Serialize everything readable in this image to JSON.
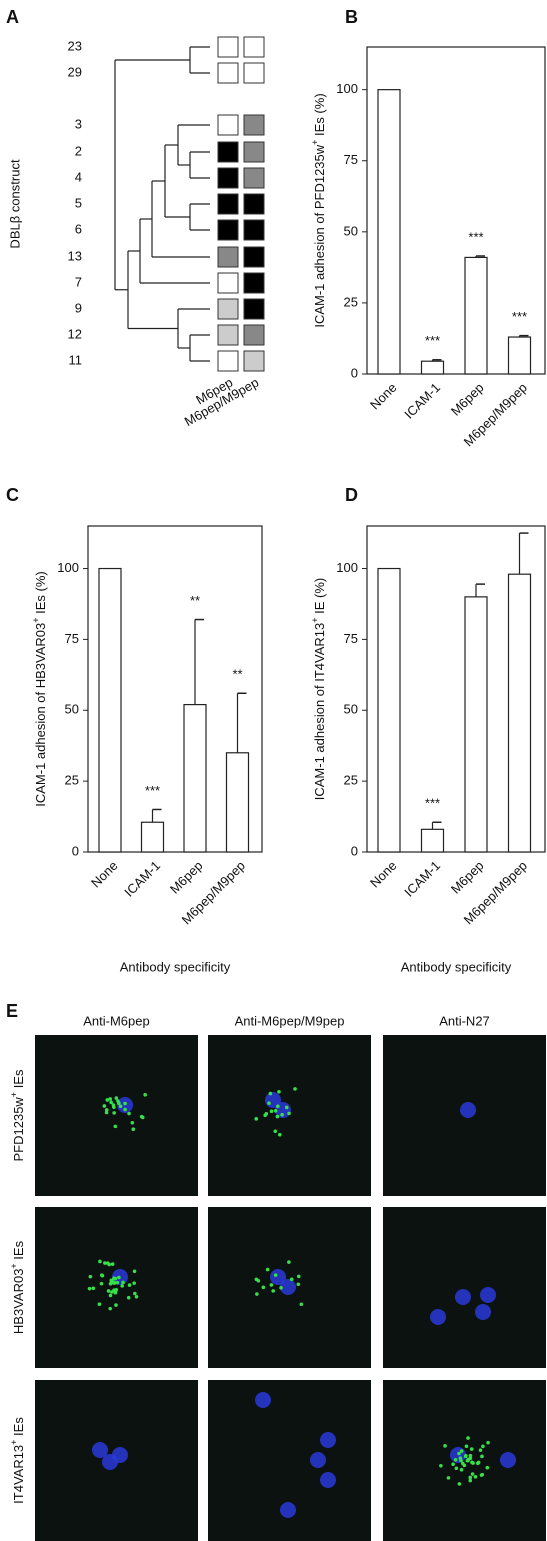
{
  "panel_labels": [
    "A",
    "B",
    "C",
    "D",
    "E"
  ],
  "dendrogram": {
    "ylabel": "DBLβ construct",
    "columns": [
      "M6pep",
      "M6pep/M9pep"
    ],
    "rows": [
      {
        "label": "23",
        "colors": [
          "#ffffff",
          "#ffffff"
        ]
      },
      {
        "label": "29",
        "colors": [
          "#ffffff",
          "#ffffff"
        ]
      },
      {
        "label": "3",
        "colors": [
          "#ffffff",
          "#888888"
        ]
      },
      {
        "label": "2",
        "colors": [
          "#000000",
          "#888888"
        ]
      },
      {
        "label": "4",
        "colors": [
          "#000000",
          "#888888"
        ]
      },
      {
        "label": "5",
        "colors": [
          "#000000",
          "#000000"
        ]
      },
      {
        "label": "6",
        "colors": [
          "#000000",
          "#000000"
        ]
      },
      {
        "label": "13",
        "colors": [
          "#888888",
          "#000000"
        ]
      },
      {
        "label": "7",
        "colors": [
          "#ffffff",
          "#000000"
        ]
      },
      {
        "label": "9",
        "colors": [
          "#cccccc",
          "#000000"
        ]
      },
      {
        "label": "12",
        "colors": [
          "#cccccc",
          "#888888"
        ]
      },
      {
        "label": "11",
        "colors": [
          "#ffffff",
          "#cccccc"
        ]
      }
    ]
  },
  "chart_data": [
    {
      "type": "bar",
      "ylabel": [
        "ICAM-1 adhesion of PFD1235w",
        "+",
        " IEs (%)"
      ],
      "categories": [
        "None",
        "ICAM-1",
        "M6pep",
        "M6pep/M9pep"
      ],
      "values": [
        100,
        4.5,
        41,
        13
      ],
      "errors": [
        null,
        0.5,
        0.5,
        0.5
      ],
      "annotations": [
        null,
        "***",
        "***",
        "***"
      ],
      "color": "#ffffff",
      "ylim": [
        0,
        115
      ],
      "yticks": [
        0,
        25,
        50,
        75,
        100
      ]
    },
    {
      "type": "bar",
      "ylabel": [
        "ICAM-1 adhesion of HB3VAR03",
        "+",
        " IEs (%)"
      ],
      "xlabel": "Antibody specificity",
      "categories": [
        "None",
        "ICAM-1",
        "M6pep",
        "M6pep/M9pep"
      ],
      "values": [
        100,
        10.5,
        52,
        35
      ],
      "errors": [
        null,
        4.5,
        30,
        21
      ],
      "annotations": [
        null,
        "***",
        "**",
        "**"
      ],
      "color": "#ffffff",
      "ylim": [
        0,
        115
      ],
      "yticks": [
        0,
        25,
        50,
        75,
        100
      ]
    },
    {
      "type": "bar",
      "ylabel": [
        "ICAM-1 adhesion of IT4VAR13",
        "+",
        " IE (%)"
      ],
      "xlabel": "Antibody specificity",
      "categories": [
        "None",
        "ICAM-1",
        "M6pep",
        "M6pep/M9pep"
      ],
      "values": [
        100,
        8,
        90,
        98
      ],
      "errors": [
        null,
        2.5,
        4.5,
        14.5
      ],
      "annotations": [
        null,
        "***",
        null,
        null
      ],
      "color": "#ffffff",
      "ylim": [
        0,
        115
      ],
      "yticks": [
        0,
        25,
        50,
        75,
        100
      ]
    }
  ],
  "micrographs": {
    "columns": [
      "Anti-M6pep",
      "Anti-M6pep/M9pep",
      "Anti-N27"
    ],
    "rows": [
      [
        "PFD1235w",
        "+",
        " IEs"
      ],
      [
        "HB3VAR03",
        "+",
        " IEs"
      ],
      [
        "IT4VAR13",
        "+",
        " IEs"
      ]
    ]
  }
}
